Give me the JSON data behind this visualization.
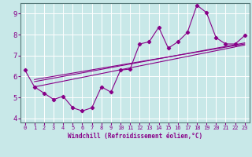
{
  "bg_color": "#c8e8e8",
  "line_color": "#880088",
  "xlabel": "Windchill (Refroidissement éolien,°C)",
  "xlim": [
    -0.5,
    23.5
  ],
  "ylim": [
    3.8,
    9.5
  ],
  "xticks": [
    0,
    1,
    2,
    3,
    4,
    5,
    6,
    7,
    8,
    9,
    10,
    11,
    12,
    13,
    14,
    15,
    16,
    17,
    18,
    19,
    20,
    21,
    22,
    23
  ],
  "yticks": [
    4,
    5,
    6,
    7,
    8,
    9
  ],
  "data_x": [
    0,
    1,
    2,
    3,
    4,
    5,
    6,
    7,
    8,
    9,
    10,
    11,
    12,
    13,
    14,
    15,
    16,
    17,
    18,
    19,
    20,
    21,
    22,
    23
  ],
  "data_y": [
    6.3,
    5.5,
    5.2,
    4.9,
    5.05,
    4.5,
    4.35,
    4.5,
    5.5,
    5.25,
    6.3,
    6.35,
    7.55,
    7.65,
    8.35,
    7.35,
    7.65,
    8.1,
    9.4,
    9.05,
    7.85,
    7.55,
    7.55,
    7.95
  ],
  "trend1_x": [
    1,
    23
  ],
  "trend1_y": [
    5.75,
    7.6
  ],
  "trend2_x": [
    1,
    23
  ],
  "trend2_y": [
    5.5,
    7.5
  ],
  "trend3_x": [
    1,
    23
  ],
  "trend3_y": [
    5.85,
    7.55
  ]
}
